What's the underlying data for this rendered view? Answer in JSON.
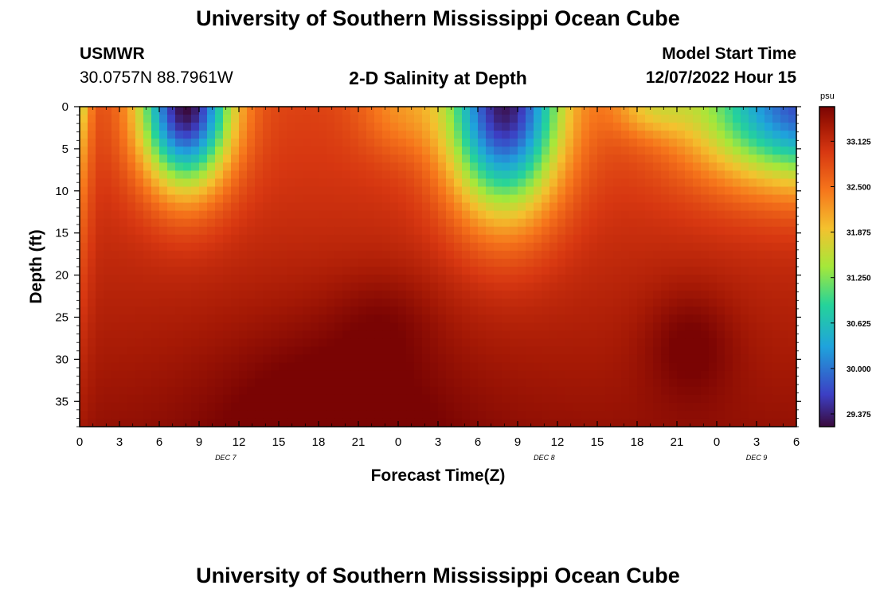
{
  "header": {
    "title": "University of Southern Mississippi Ocean Cube",
    "station": "USMWR",
    "coords": "30.0757N  88.7961W",
    "chart_title": "2-D Salinity at Depth",
    "model_label": "Model Start Time",
    "model_time": "12/07/2022 Hour 15"
  },
  "footer": {
    "title": "University of Southern Mississippi Ocean Cube"
  },
  "colorbar": {
    "unit": "psu",
    "ticks": [
      "33.125",
      "32.500",
      "31.875",
      "31.250",
      "30.625",
      "30.000",
      "29.375"
    ],
    "min": 29.2,
    "max": 33.6
  },
  "chart_data": {
    "type": "heatmap",
    "title": "2-D Salinity at Depth",
    "xlabel": "Forecast Time(Z)",
    "ylabel": "Depth (ft)",
    "x_ticks": [
      "0",
      "3",
      "6",
      "9",
      "12",
      "15",
      "18",
      "21",
      "0",
      "3",
      "6",
      "9",
      "12",
      "15",
      "18",
      "21",
      "0",
      "3",
      "6"
    ],
    "x_range_hours": [
      0,
      54
    ],
    "date_labels": [
      {
        "label": "DEC 7",
        "hour": 11
      },
      {
        "label": "DEC 8",
        "hour": 35
      },
      {
        "label": "DEC 9",
        "hour": 51
      }
    ],
    "y_ticks": [
      "0",
      "5",
      "10",
      "15",
      "20",
      "25",
      "30",
      "35"
    ],
    "ylim": [
      0,
      38
    ],
    "y_inverted": true,
    "colorbar_range": [
      29.2,
      33.6
    ],
    "colormap": [
      "#3a0a3c",
      "#3c3fc4",
      "#1fa3dc",
      "#25d39a",
      "#a5e83a",
      "#f4c12e",
      "#f6751b",
      "#d73711",
      "#a51905",
      "#7a0403"
    ],
    "features": [
      {
        "label": "low salinity (fresh) surface lens",
        "hour": 8,
        "depth": 0,
        "value": 29.3
      },
      {
        "label": "low salinity surface lens",
        "hour": 32,
        "depth": 0,
        "value": 30.0
      },
      {
        "label": "low salinity surface lens",
        "hour": 53,
        "depth": 0,
        "value": 30.6
      },
      {
        "label": "high salinity bottom core",
        "hour": 19,
        "depth": 36,
        "value": 33.6
      },
      {
        "label": "high salinity bottom core",
        "hour": 46,
        "depth": 28,
        "value": 33.5
      }
    ]
  }
}
